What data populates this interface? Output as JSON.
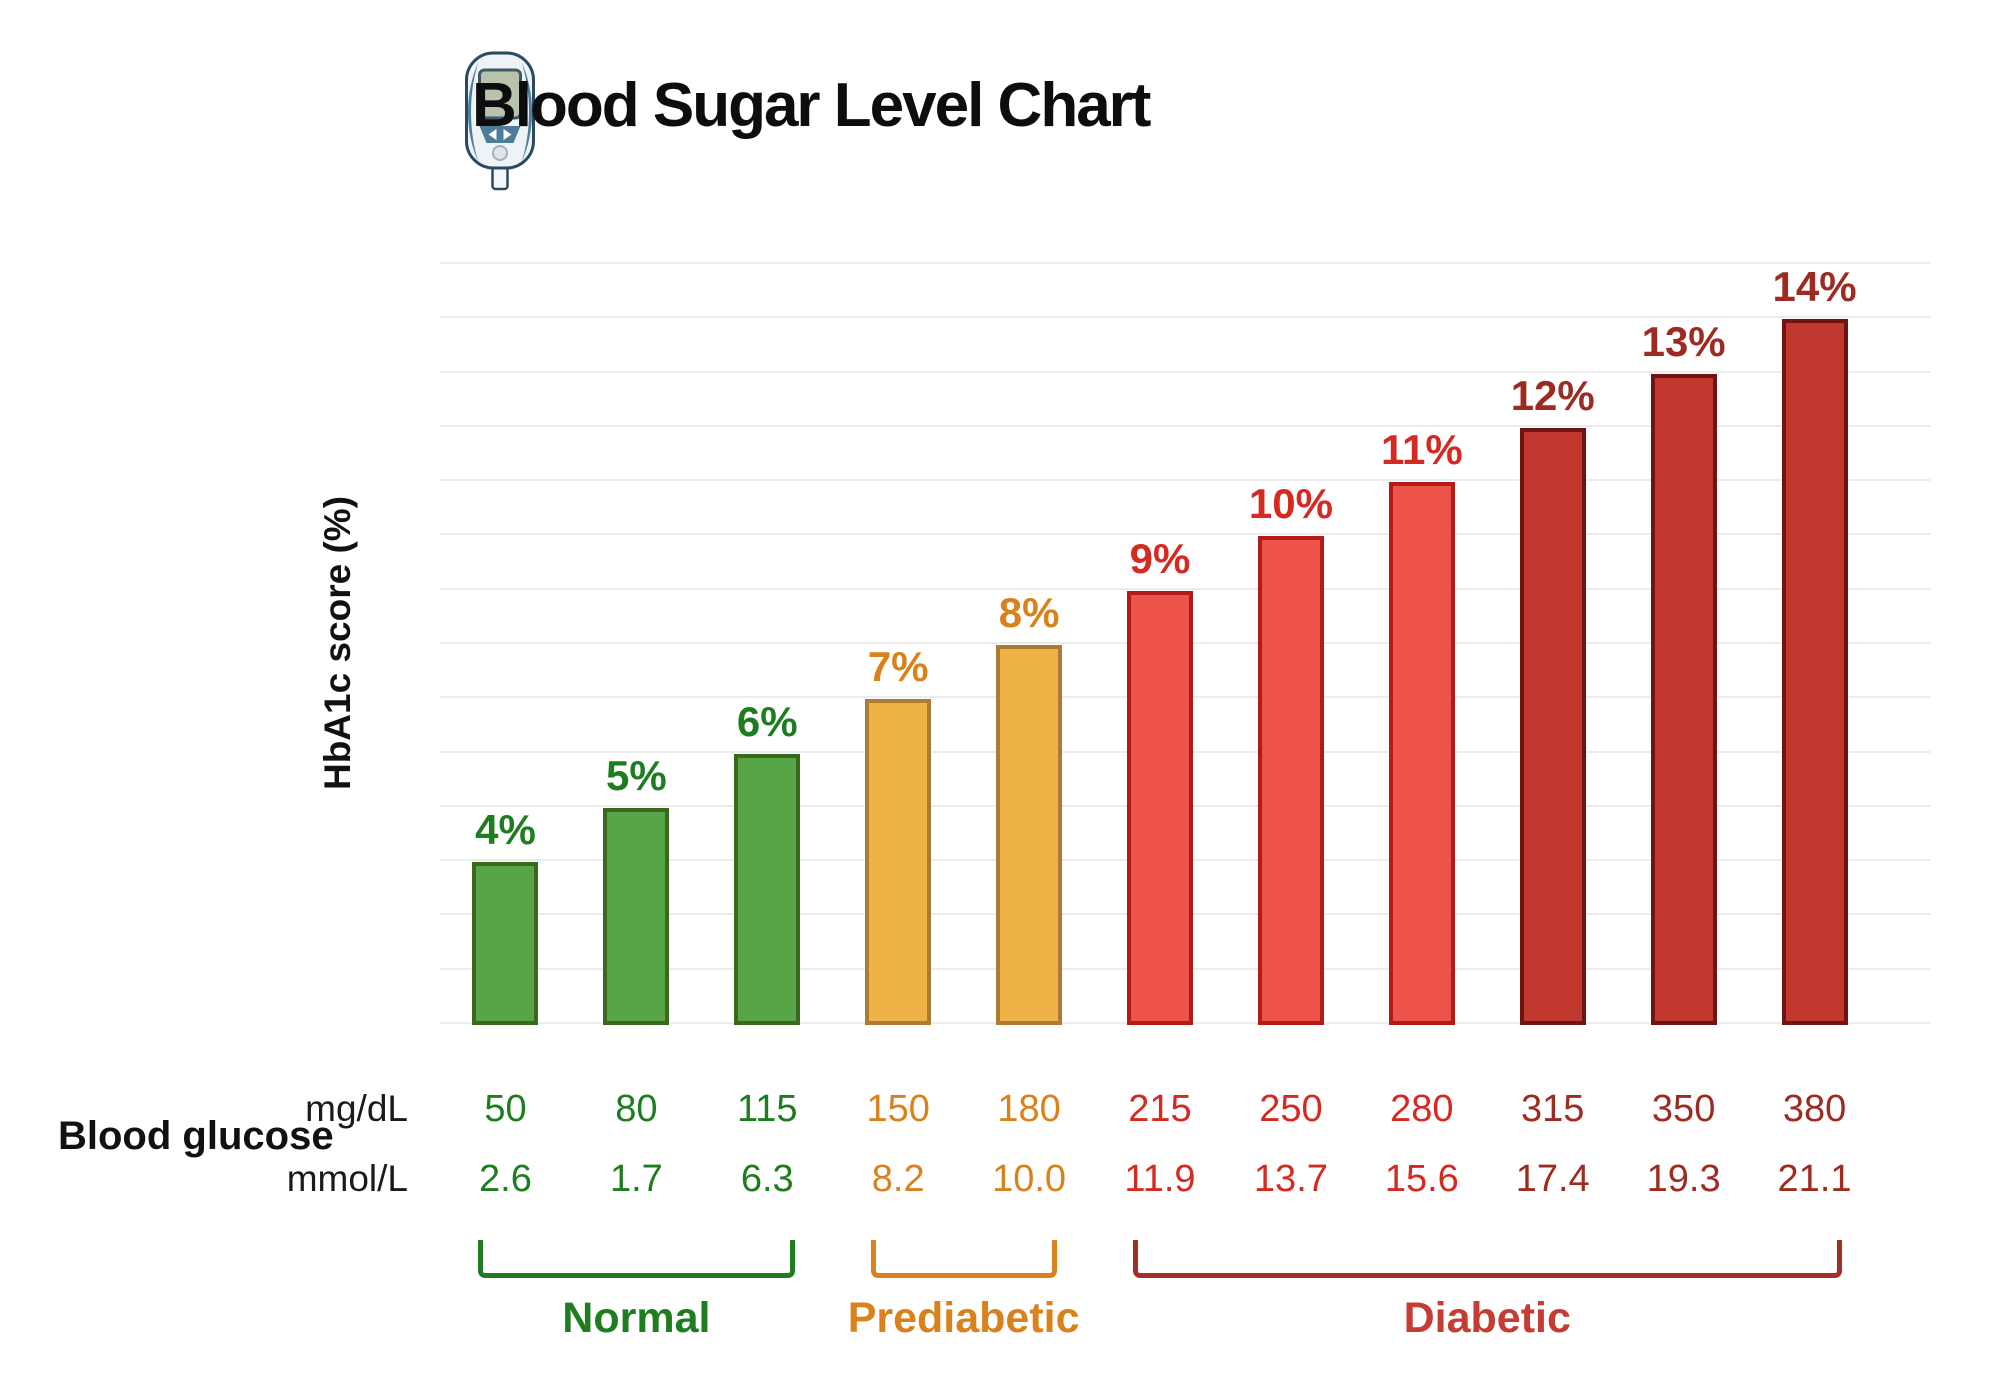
{
  "title": "Blood Sugar Level Chart",
  "y_axis_label": "HbA1c score (%)",
  "row_label": "Blood glucose",
  "units": [
    {
      "label": "mg/dL"
    },
    {
      "label": "mmol/L"
    }
  ],
  "colors": {
    "title_text": "#0d0d0d",
    "grid": "#ececec",
    "categories": {
      "normal": {
        "fill": "#57a546",
        "stroke": "#38691e",
        "text": "#1e7d1e"
      },
      "prediabetic": {
        "fill": "#efb246",
        "stroke": "#ae7b35",
        "text": "#d9821c"
      },
      "diabetic_light": {
        "fill": "#ee5349",
        "stroke": "#b21c18",
        "text": "#d42a22"
      },
      "diabetic_dark": {
        "fill": "#c1382e",
        "stroke": "#701311",
        "text": "#9d2b22"
      }
    },
    "groups": {
      "normal": {
        "bracket": "#1e7d1e",
        "text": "#1e7d1e"
      },
      "prediabetic": {
        "bracket": "#d9821c",
        "text": "#d9821c"
      },
      "diabetic": {
        "bracket": "#a03028",
        "text": "#c43c33"
      }
    }
  },
  "chart_data": {
    "type": "bar",
    "title": "Blood Sugar Level Chart",
    "xlabel": "Blood glucose",
    "ylabel": "HbA1c score (%)",
    "ylim": [
      1,
      15
    ],
    "grid": true,
    "gridline_count": 15,
    "legend": "none",
    "bars": [
      {
        "hba1c_pct": 4,
        "label": "4%",
        "mg_dl": "50",
        "mmol_l": "2.6",
        "category": "normal"
      },
      {
        "hba1c_pct": 5,
        "label": "5%",
        "mg_dl": "80",
        "mmol_l": "1.7",
        "category": "normal"
      },
      {
        "hba1c_pct": 6,
        "label": "6%",
        "mg_dl": "115",
        "mmol_l": "6.3",
        "category": "normal"
      },
      {
        "hba1c_pct": 7,
        "label": "7%",
        "mg_dl": "150",
        "mmol_l": "8.2",
        "category": "prediabetic"
      },
      {
        "hba1c_pct": 8,
        "label": "8%",
        "mg_dl": "180",
        "mmol_l": "10.0",
        "category": "prediabetic"
      },
      {
        "hba1c_pct": 9,
        "label": "9%",
        "mg_dl": "215",
        "mmol_l": "11.9",
        "category": "diabetic_light"
      },
      {
        "hba1c_pct": 10,
        "label": "10%",
        "mg_dl": "250",
        "mmol_l": "13.7",
        "category": "diabetic_light"
      },
      {
        "hba1c_pct": 11,
        "label": "11%",
        "mg_dl": "280",
        "mmol_l": "15.6",
        "category": "diabetic_light"
      },
      {
        "hba1c_pct": 12,
        "label": "12%",
        "mg_dl": "315",
        "mmol_l": "17.4",
        "category": "diabetic_dark"
      },
      {
        "hba1c_pct": 13,
        "label": "13%",
        "mg_dl": "350",
        "mmol_l": "19.3",
        "category": "diabetic_dark"
      },
      {
        "hba1c_pct": 14,
        "label": "14%",
        "mg_dl": "380",
        "mmol_l": "21.1",
        "category": "diabetic_dark"
      }
    ],
    "groups": [
      {
        "label": "Normal",
        "from": 0,
        "to": 2,
        "category": "normal"
      },
      {
        "label": "Prediabetic",
        "from": 3,
        "to": 4,
        "category": "prediabetic"
      },
      {
        "label": "Diabetic",
        "from": 5,
        "to": 10,
        "category": "diabetic"
      }
    ]
  }
}
